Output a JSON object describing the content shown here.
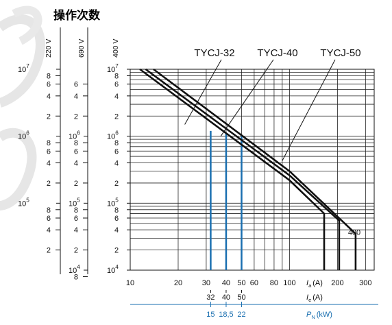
{
  "chart_data": {
    "type": "line",
    "title": "操作次数",
    "x_scale": "log",
    "y_scale": "log",
    "xlim": [
      10,
      340
    ],
    "ylim": [
      10000,
      10000000
    ],
    "x_tick_labels": [
      "10",
      "20",
      "30",
      "40",
      "50",
      "60",
      "80",
      "100",
      "200",
      "300"
    ],
    "x_tick_values": [
      10,
      20,
      30,
      40,
      50,
      60,
      80,
      100,
      200,
      300
    ],
    "y_mantissa_labels": [
      "8",
      "6",
      "4",
      "2"
    ],
    "y_mantissa_values": [
      8,
      6,
      4,
      2
    ],
    "y_decade_values": [
      10000,
      100000,
      1000000,
      10000000
    ],
    "y_decade_labels": [
      {
        "base": "10",
        "exp": "4"
      },
      {
        "base": "10",
        "exp": "5"
      },
      {
        "base": "10",
        "exp": "6"
      },
      {
        "base": "10",
        "exp": "7"
      }
    ],
    "xlabels": [
      {
        "symbol": "I",
        "sub": "a",
        "unit": "(A)"
      },
      {
        "symbol": "I",
        "sub": "e",
        "unit": "(A)"
      },
      {
        "symbol": "P",
        "sub": "N",
        "unit": "(kW)"
      }
    ],
    "ie_ticks": [
      {
        "label": "32",
        "value": 32
      },
      {
        "label": "40",
        "value": 40
      },
      {
        "label": "50",
        "value": 50
      }
    ],
    "pn_ticks": [
      {
        "label": "15",
        "at": 32
      },
      {
        "label": "18,5",
        "at": 40
      },
      {
        "label": "22",
        "at": 50
      }
    ],
    "left_scales": [
      {
        "header": "220 V",
        "decades": [
          {
            "base": "10",
            "exp": "7",
            "value": 10000000
          },
          {
            "base": "10",
            "exp": "6",
            "value": 1000000
          },
          {
            "base": "10",
            "exp": "5",
            "value": 100000
          }
        ],
        "mantissas": [
          {
            "label": "8",
            "value": 8000000
          },
          {
            "label": "6",
            "value": 6000000
          },
          {
            "label": "4",
            "value": 4000000
          },
          {
            "label": "2",
            "value": 2000000
          },
          {
            "label": "8",
            "value": 800000
          },
          {
            "label": "6",
            "value": 600000
          },
          {
            "label": "4",
            "value": 400000
          },
          {
            "label": "2",
            "value": 200000
          },
          {
            "label": "8",
            "value": 80000
          },
          {
            "label": "6",
            "value": 60000
          },
          {
            "label": "4",
            "value": 40000
          },
          {
            "label": "2",
            "value": 20000
          }
        ]
      },
      {
        "header": "690 V",
        "decades": [
          {
            "base": "10",
            "exp": "6",
            "value": 1000000
          },
          {
            "base": "10",
            "exp": "5",
            "value": 100000
          },
          {
            "base": "10",
            "exp": "4",
            "value": 10000
          }
        ],
        "mantissas": [
          {
            "label": "6",
            "value": 6000000
          },
          {
            "label": "4",
            "value": 4000000
          },
          {
            "label": "2",
            "value": 2000000
          },
          {
            "label": "8",
            "value": 800000
          },
          {
            "label": "6",
            "value": 600000
          },
          {
            "label": "4",
            "value": 400000
          },
          {
            "label": "2",
            "value": 200000
          },
          {
            "label": "8",
            "value": 80000
          },
          {
            "label": "6",
            "value": 60000
          },
          {
            "label": "4",
            "value": 40000
          },
          {
            "label": "2",
            "value": 20000
          },
          {
            "label": "8",
            "value": 8000
          }
        ]
      }
    ],
    "main_scale_header": "400 V",
    "series": [
      {
        "name": "TYCJ-32",
        "x": [
          11.5,
          100,
          165,
          165
        ],
        "y": [
          10000000,
          220000,
          70000,
          10000
        ]
      },
      {
        "name": "TYCJ-40",
        "x": [
          12.5,
          100,
          205,
          205
        ],
        "y": [
          10000000,
          260000,
          55000,
          10000
        ]
      },
      {
        "name": "TYCJ-50",
        "x": [
          14,
          100,
          260,
          260
        ],
        "y": [
          10000000,
          300000,
          35000,
          10000
        ]
      }
    ],
    "vertical_markers": [
      {
        "x": 32,
        "y_top": 1200000
      },
      {
        "x": 40,
        "y_top": 1100000
      },
      {
        "x": 50,
        "y_top": 1000000
      }
    ],
    "series_label_pointers": [
      {
        "series": "TYCJ-32",
        "point_x": 22,
        "point_y": 1500000
      },
      {
        "series": "TYCJ-40",
        "point_x": 37,
        "point_y": 1000000
      },
      {
        "series": "TYCJ-50",
        "point_x": 90,
        "point_y": 430000
      }
    ],
    "annotations": [
      {
        "text": "400"
      }
    ],
    "grid": true,
    "colors": {
      "curve": "#111111",
      "marker": "#1a6fb0",
      "grid": "#222222",
      "pn_axis": "#1a6fb0"
    }
  }
}
